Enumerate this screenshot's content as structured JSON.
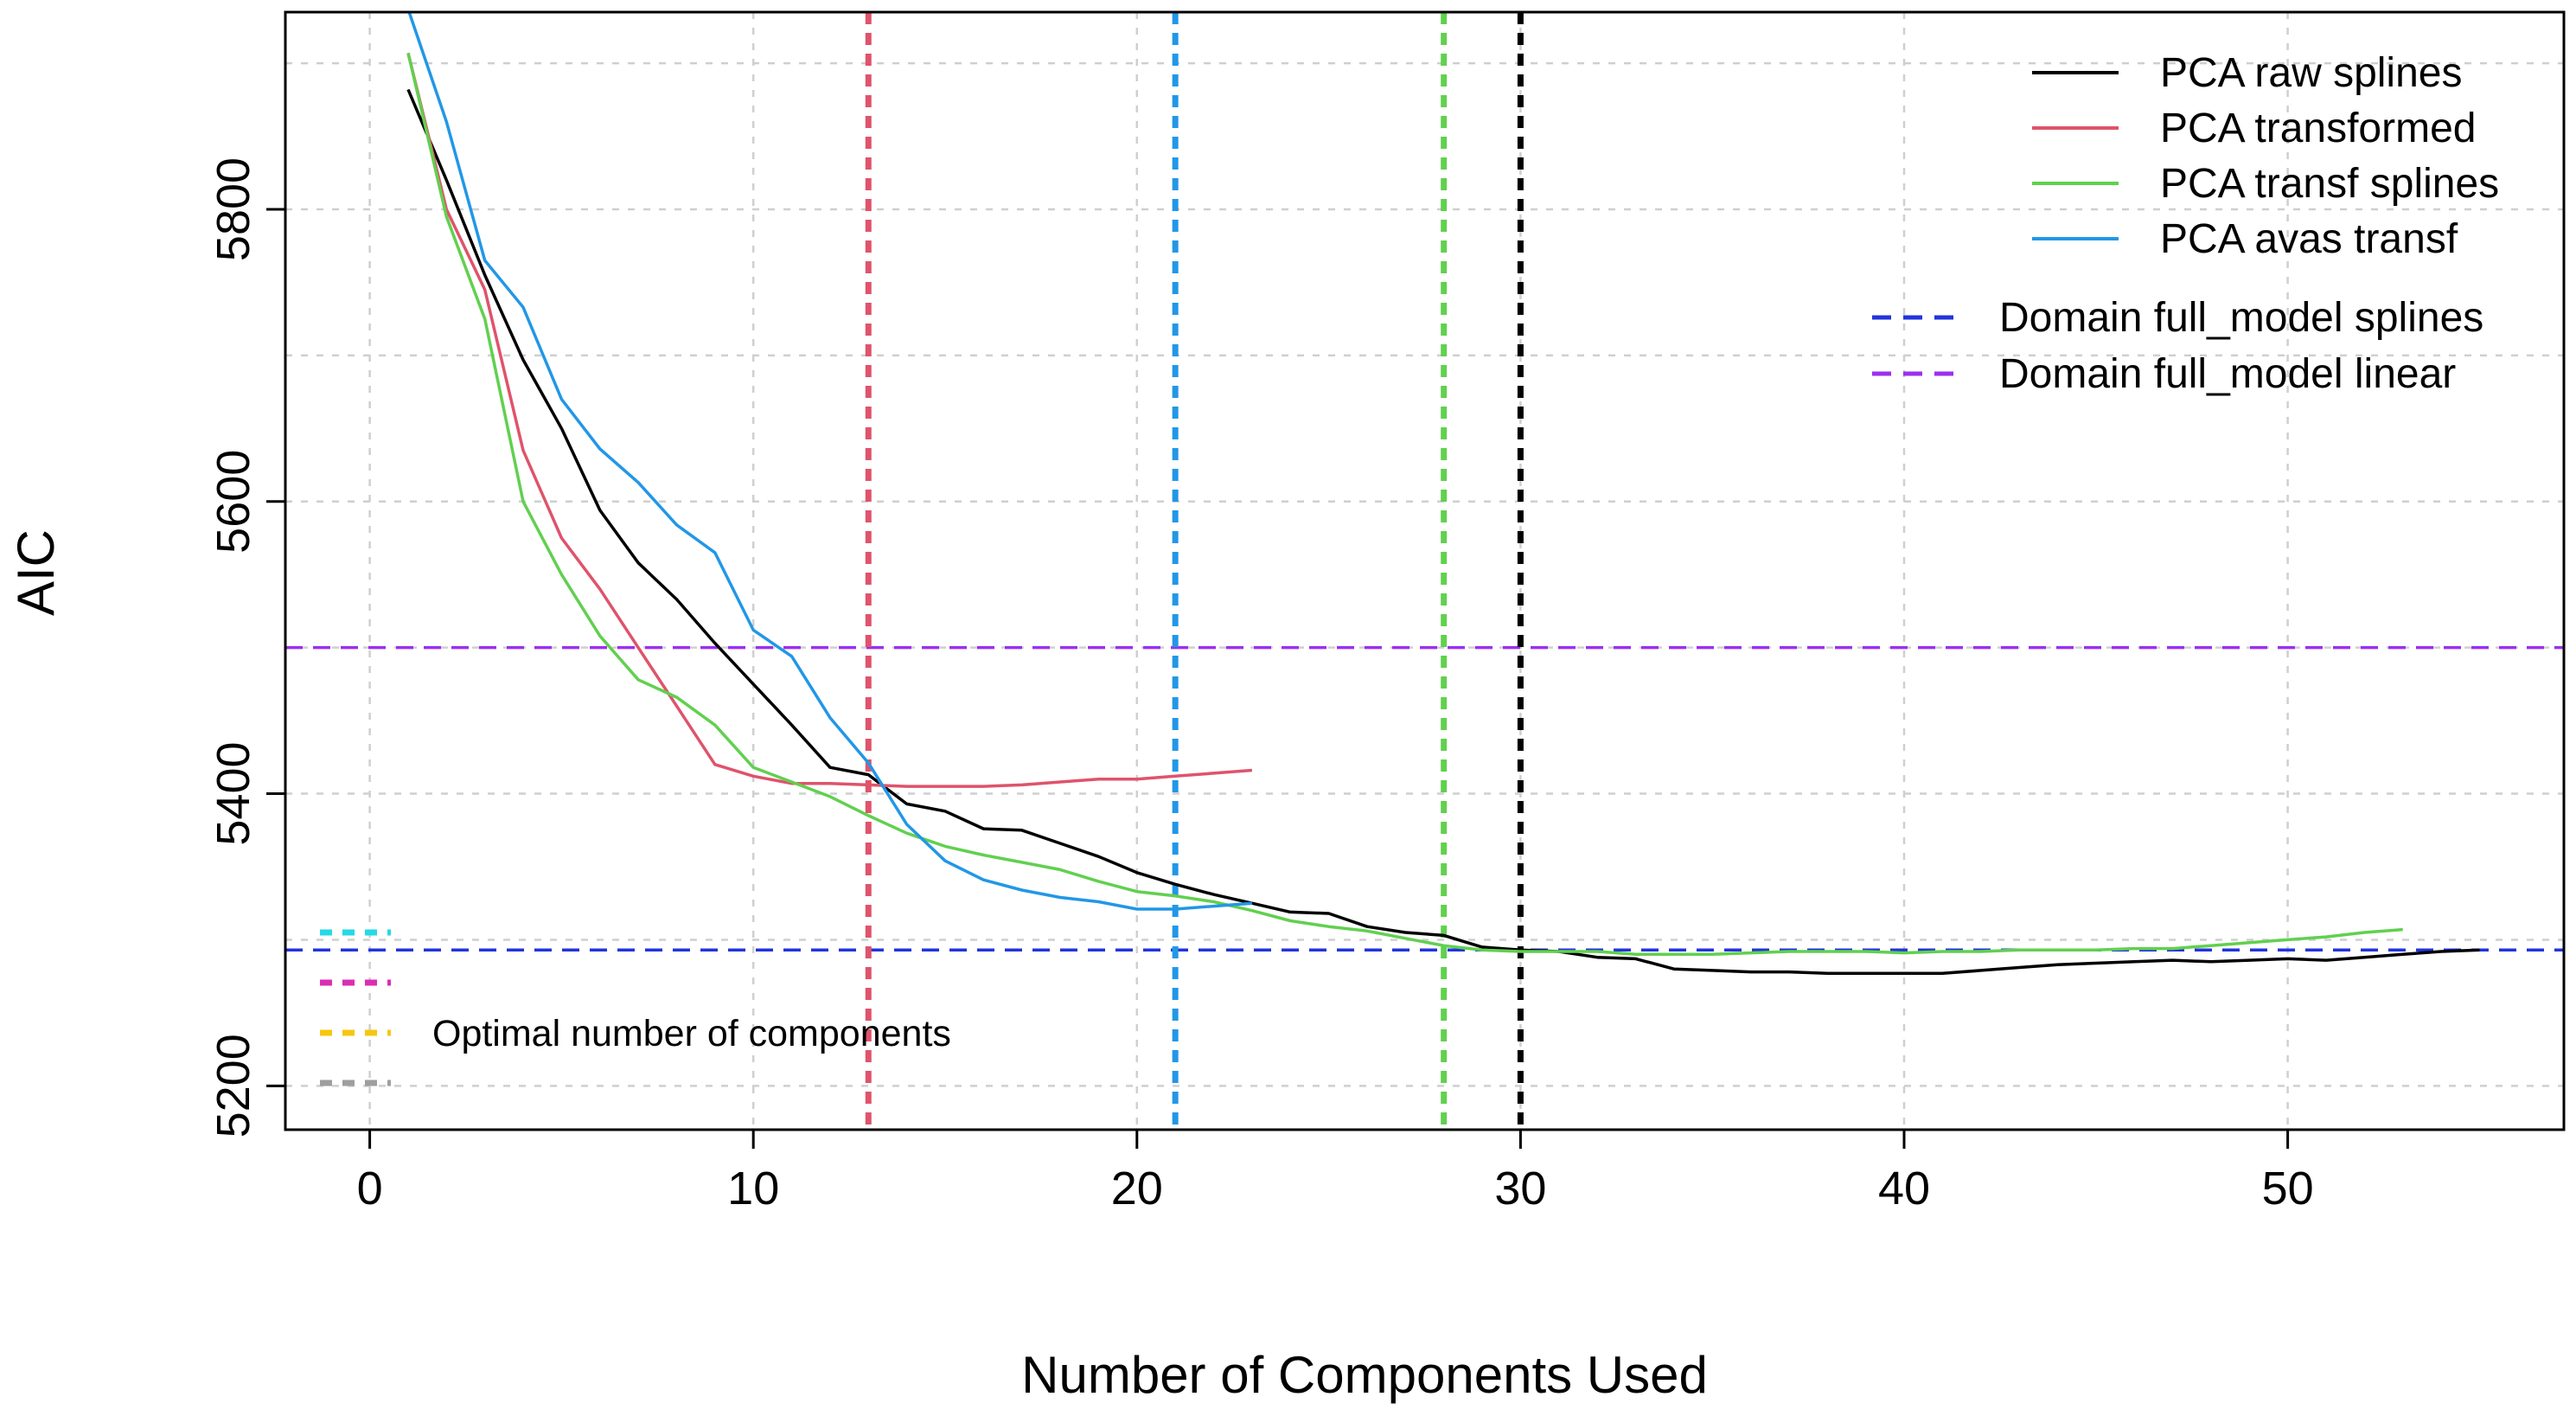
{
  "chart_data": {
    "type": "line",
    "title": "",
    "xlabel": "Number of Components Used",
    "ylabel": "AIC",
    "xlim": [
      -2.2,
      57.2
    ],
    "ylim": [
      5170,
      5935
    ],
    "xticks": [
      0,
      10,
      20,
      30,
      40,
      50
    ],
    "yticks": [
      5200,
      5400,
      5600,
      5800
    ],
    "grid": true,
    "gridlines_x": [
      0,
      10,
      20,
      30,
      40,
      50
    ],
    "gridlines_y": [
      5200,
      5300,
      5400,
      5500,
      5600,
      5700,
      5800,
      5900
    ],
    "series": [
      {
        "name": "PCA raw splines",
        "color": "#000000",
        "x": [
          1,
          2,
          3,
          4,
          5,
          6,
          7,
          8,
          9,
          10,
          11,
          12,
          13,
          14,
          15,
          16,
          17,
          18,
          19,
          20,
          21,
          22,
          23,
          24,
          25,
          26,
          27,
          28,
          29,
          30,
          31,
          32,
          33,
          34,
          35,
          36,
          37,
          38,
          39,
          40,
          41,
          42,
          43,
          44,
          45,
          46,
          47,
          48,
          49,
          50,
          51,
          52,
          53,
          54,
          55
        ],
        "y": [
          5882,
          5820,
          5755,
          5697,
          5650,
          5594,
          5558,
          5533,
          5503,
          5475,
          5447,
          5418,
          5413,
          5393,
          5388,
          5376,
          5375,
          5366,
          5357,
          5346,
          5338,
          5331,
          5325,
          5319,
          5318,
          5309,
          5305,
          5303,
          5295,
          5293,
          5292,
          5288,
          5287,
          5280,
          5279,
          5278,
          5278,
          5277,
          5277,
          5277,
          5277,
          5279,
          5281,
          5283,
          5284,
          5285,
          5286,
          5285,
          5286,
          5287,
          5286,
          5288,
          5290,
          5292,
          5293
        ]
      },
      {
        "name": "PCA transformed",
        "color": "#DF536B",
        "x": [
          1,
          2,
          3,
          4,
          5,
          6,
          7,
          8,
          9,
          10,
          11,
          12,
          13,
          14,
          15,
          16,
          17,
          18,
          19,
          20,
          21,
          22,
          23
        ],
        "y": [
          5907,
          5800,
          5745,
          5635,
          5575,
          5540,
          5500,
          5460,
          5420,
          5412,
          5407,
          5407,
          5406,
          5405,
          5405,
          5405,
          5406,
          5408,
          5410,
          5410,
          5412,
          5414,
          5416
        ]
      },
      {
        "name": "PCA transf splines",
        "color": "#61D04F",
        "x": [
          1,
          2,
          3,
          4,
          5,
          6,
          7,
          8,
          9,
          10,
          11,
          12,
          13,
          14,
          15,
          16,
          17,
          18,
          19,
          20,
          21,
          22,
          23,
          24,
          25,
          26,
          27,
          28,
          29,
          30,
          31,
          32,
          33,
          34,
          35,
          36,
          37,
          38,
          39,
          40,
          41,
          42,
          43,
          44,
          45,
          46,
          47,
          48,
          49,
          50,
          51,
          52,
          53
        ],
        "y": [
          5907,
          5795,
          5725,
          5600,
          5550,
          5508,
          5478,
          5466,
          5447,
          5418,
          5408,
          5398,
          5385,
          5373,
          5364,
          5358,
          5353,
          5348,
          5340,
          5333,
          5330,
          5326,
          5320,
          5313,
          5309,
          5306,
          5301,
          5296,
          5293,
          5292,
          5292,
          5292,
          5290,
          5290,
          5290,
          5291,
          5292,
          5292,
          5292,
          5291,
          5292,
          5292,
          5293,
          5293,
          5293,
          5294,
          5294,
          5296,
          5298,
          5300,
          5302,
          5305,
          5307
        ]
      },
      {
        "name": "PCA avas transf",
        "color": "#2297E6",
        "x": [
          1,
          2,
          3,
          4,
          5,
          6,
          7,
          8,
          9,
          10,
          11,
          12,
          13,
          14,
          15,
          16,
          17,
          18,
          19,
          20,
          21,
          22,
          23
        ],
        "y": [
          5937,
          5860,
          5765,
          5733,
          5670,
          5636,
          5613,
          5584,
          5565,
          5512,
          5494,
          5452,
          5421,
          5379,
          5354,
          5341,
          5334,
          5329,
          5326,
          5321,
          5321,
          5323,
          5325
        ]
      }
    ],
    "reference_lines": [
      {
        "name": "Domain full_model splines",
        "color": "#2134DB",
        "y": 5293
      },
      {
        "name": "Domain full_model linear",
        "color": "#9B30F0",
        "y": 5500
      }
    ],
    "optimal_lines": [
      {
        "x": 13,
        "color": "#DF536B"
      },
      {
        "x": 21,
        "color": "#2297E6"
      },
      {
        "x": 28,
        "color": "#61D04F"
      },
      {
        "x": 30,
        "color": "#000000"
      }
    ],
    "legend_placement": "top-right",
    "annotation": {
      "text": "Optimal number of components",
      "swatch_colors": [
        "#26D9E6",
        "#DB2EB3",
        "#F5C710",
        "#9E9E9E"
      ]
    }
  }
}
